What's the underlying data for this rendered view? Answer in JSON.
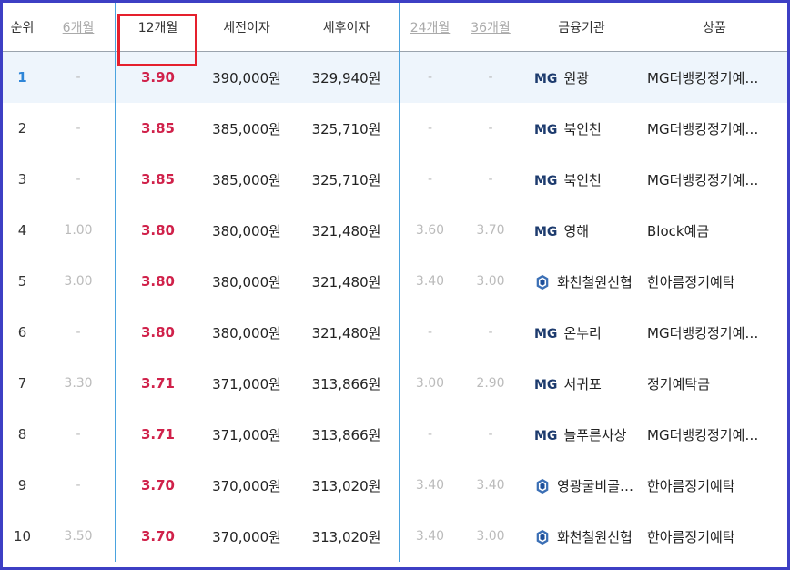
{
  "headers": {
    "rank": "순위",
    "m6": "6개월",
    "m12": "12개월",
    "pretax": "세전이자",
    "aftertax": "세후이자",
    "m24": "24개월",
    "m36": "36개월",
    "institution": "금융기관",
    "product": "상품"
  },
  "rows": [
    {
      "rank": "1",
      "m6": "-",
      "m12": "3.90",
      "pretax": "390,000원",
      "aftertax": "329,940원",
      "m24": "-",
      "m36": "-",
      "logo": "mg",
      "logo_text": "MG",
      "bank": "원광",
      "product": "MG더뱅킹정기예…"
    },
    {
      "rank": "2",
      "m6": "-",
      "m12": "3.85",
      "pretax": "385,000원",
      "aftertax": "325,710원",
      "m24": "-",
      "m36": "-",
      "logo": "mg",
      "logo_text": "MG",
      "bank": "북인천",
      "product": "MG더뱅킹정기예…"
    },
    {
      "rank": "3",
      "m6": "-",
      "m12": "3.85",
      "pretax": "385,000원",
      "aftertax": "325,710원",
      "m24": "-",
      "m36": "-",
      "logo": "mg",
      "logo_text": "MG",
      "bank": "북인천",
      "product": "MG더뱅킹정기예…"
    },
    {
      "rank": "4",
      "m6": "1.00",
      "m12": "3.80",
      "pretax": "380,000원",
      "aftertax": "321,480원",
      "m24": "3.60",
      "m36": "3.70",
      "logo": "mg",
      "logo_text": "MG",
      "bank": "영해",
      "product": "Block예금"
    },
    {
      "rank": "5",
      "m6": "3.00",
      "m12": "3.80",
      "pretax": "380,000원",
      "aftertax": "321,480원",
      "m24": "3.40",
      "m36": "3.00",
      "logo": "shinhyup",
      "logo_text": "",
      "bank": "화천철원신협",
      "product": "한아름정기예탁"
    },
    {
      "rank": "6",
      "m6": "-",
      "m12": "3.80",
      "pretax": "380,000원",
      "aftertax": "321,480원",
      "m24": "-",
      "m36": "-",
      "logo": "mg",
      "logo_text": "MG",
      "bank": "온누리",
      "product": "MG더뱅킹정기예…"
    },
    {
      "rank": "7",
      "m6": "3.30",
      "m12": "3.71",
      "pretax": "371,000원",
      "aftertax": "313,866원",
      "m24": "3.00",
      "m36": "2.90",
      "logo": "mg",
      "logo_text": "MG",
      "bank": "서귀포",
      "product": "정기예탁금"
    },
    {
      "rank": "8",
      "m6": "-",
      "m12": "3.71",
      "pretax": "371,000원",
      "aftertax": "313,866원",
      "m24": "-",
      "m36": "-",
      "logo": "mg",
      "logo_text": "MG",
      "bank": "늘푸른사상",
      "product": "MG더뱅킹정기예…"
    },
    {
      "rank": "9",
      "m6": "-",
      "m12": "3.70",
      "pretax": "370,000원",
      "aftertax": "313,020원",
      "m24": "3.40",
      "m36": "3.40",
      "logo": "shinhyup",
      "logo_text": "",
      "bank": "영광굴비골…",
      "product": "한아름정기예탁"
    },
    {
      "rank": "10",
      "m6": "3.50",
      "m12": "3.70",
      "pretax": "370,000원",
      "aftertax": "313,020원",
      "m24": "3.40",
      "m36": "3.00",
      "logo": "shinhyup",
      "logo_text": "",
      "bank": "화천철원신협",
      "product": "한아름정기예탁"
    }
  ],
  "colors": {
    "frame": "#3d3fc4",
    "highlight_box": "#e5202d",
    "rate_12m": "#d0214a",
    "column_highlight": "#4aa3df",
    "first_row_bg": "#eef5fc"
  }
}
